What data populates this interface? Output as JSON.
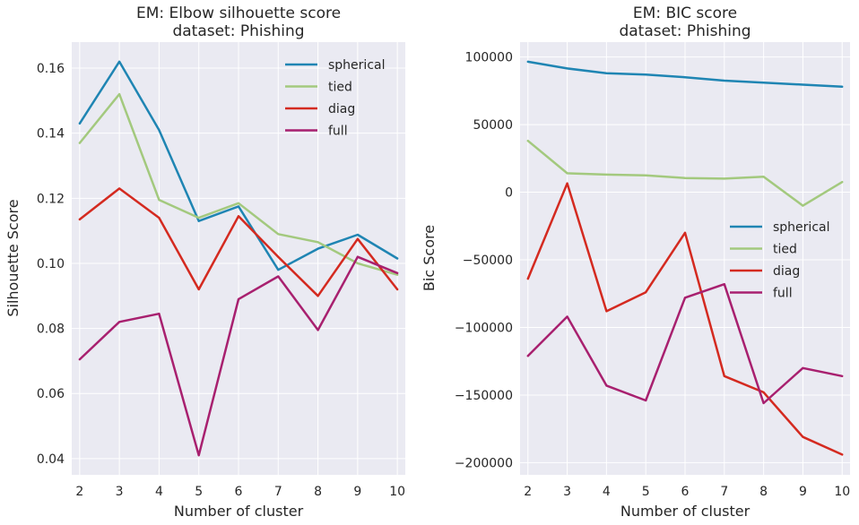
{
  "colors": {
    "spherical": "#1f85b3",
    "tied": "#a3c97e",
    "diag": "#d42a20",
    "full": "#a8206f",
    "background": "#eaeaf2",
    "grid": "#ffffff"
  },
  "chart_data": [
    {
      "type": "line",
      "title": "EM: Elbow silhouette score\ndataset: Phishing",
      "xlabel": "Number of cluster",
      "ylabel": "Silhouette Score",
      "x": [
        2,
        3,
        4,
        5,
        6,
        7,
        8,
        9,
        10
      ],
      "xlim": [
        1.8,
        10.2
      ],
      "ylim": [
        0.035,
        0.168
      ],
      "xticks": [
        2,
        3,
        4,
        5,
        6,
        7,
        8,
        9,
        10
      ],
      "yticks": [
        0.04,
        0.06,
        0.08,
        0.1,
        0.12,
        0.14,
        0.16
      ],
      "ytick_labels": [
        "0.04",
        "0.06",
        "0.08",
        "0.10",
        "0.12",
        "0.14",
        "0.16"
      ],
      "grid": true,
      "legend": "top-right",
      "series": [
        {
          "name": "spherical",
          "values": [
            0.143,
            0.162,
            0.141,
            0.113,
            0.1175,
            0.098,
            0.1045,
            0.1088,
            0.1015
          ]
        },
        {
          "name": "tied",
          "values": [
            0.137,
            0.152,
            0.1195,
            0.114,
            0.1185,
            0.109,
            0.1065,
            0.1,
            0.0965
          ]
        },
        {
          "name": "diag",
          "values": [
            0.1135,
            0.123,
            0.114,
            0.092,
            0.1145,
            0.102,
            0.09,
            0.1075,
            0.092
          ]
        },
        {
          "name": "full",
          "values": [
            0.0705,
            0.082,
            0.0845,
            0.041,
            0.089,
            0.096,
            0.0795,
            0.102,
            0.097
          ]
        }
      ]
    },
    {
      "type": "line",
      "title": "EM: BIC score\ndataset: Phishing",
      "xlabel": "Number of cluster",
      "ylabel": "Bic Score",
      "x": [
        2,
        3,
        4,
        5,
        6,
        7,
        8,
        9,
        10
      ],
      "xlim": [
        1.8,
        10.2
      ],
      "ylim": [
        -209000,
        111000
      ],
      "xticks": [
        2,
        3,
        4,
        5,
        6,
        7,
        8,
        9,
        10
      ],
      "yticks": [
        -200000,
        -150000,
        -100000,
        -50000,
        0,
        50000,
        100000
      ],
      "ytick_labels": [
        "−200000",
        "−150000",
        "−100000",
        "−50000",
        "0",
        "50000",
        "100000"
      ],
      "grid": true,
      "legend": "center-right",
      "series": [
        {
          "name": "spherical",
          "values": [
            96500,
            91500,
            88000,
            87000,
            85000,
            82500,
            81000,
            79500,
            78000
          ]
        },
        {
          "name": "tied",
          "values": [
            38000,
            14000,
            13000,
            12500,
            10500,
            10000,
            11500,
            -10000,
            7500
          ]
        },
        {
          "name": "diag",
          "values": [
            -64000,
            6500,
            -88000,
            -74000,
            -30000,
            -136000,
            -148000,
            -181000,
            -194000
          ]
        },
        {
          "name": "full",
          "values": [
            -121000,
            -92000,
            -143000,
            -154000,
            -78000,
            -68000,
            -156000,
            -130000,
            -136000
          ]
        }
      ]
    }
  ]
}
